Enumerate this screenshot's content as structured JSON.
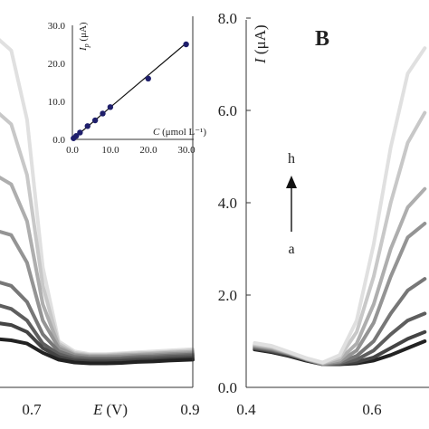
{
  "chart_data": [
    {
      "type": "line",
      "panel": "A (partial)",
      "xlabel_var": "E",
      "xlabel_unit": "(V)",
      "ylabel": "",
      "x_ticks": [
        "0.7",
        "0.9"
      ],
      "xlim": [
        0.65,
        0.9
      ],
      "ylim": [
        0,
        8
      ],
      "series": [
        {
          "x": [
            0.65,
            0.67,
            0.69,
            0.71,
            0.73,
            0.75,
            0.77,
            0.79,
            0.81,
            0.83,
            0.85,
            0.87,
            0.9
          ],
          "y": [
            7.6,
            7.3,
            5.8,
            2.6,
            1.0,
            0.78,
            0.72,
            0.72,
            0.74,
            0.76,
            0.78,
            0.8,
            0.83
          ]
        },
        {
          "x": [
            0.65,
            0.67,
            0.69,
            0.71,
            0.73,
            0.75,
            0.77,
            0.79,
            0.81,
            0.83,
            0.85,
            0.87,
            0.9
          ],
          "y": [
            6.0,
            5.7,
            4.6,
            2.2,
            0.95,
            0.75,
            0.7,
            0.7,
            0.72,
            0.74,
            0.75,
            0.77,
            0.8
          ]
        },
        {
          "x": [
            0.65,
            0.67,
            0.69,
            0.71,
            0.73,
            0.75,
            0.77,
            0.79,
            0.81,
            0.83,
            0.85,
            0.87,
            0.9
          ],
          "y": [
            4.6,
            4.4,
            3.6,
            1.8,
            0.9,
            0.72,
            0.68,
            0.68,
            0.7,
            0.71,
            0.73,
            0.75,
            0.77
          ]
        },
        {
          "x": [
            0.65,
            0.67,
            0.69,
            0.71,
            0.73,
            0.75,
            0.77,
            0.79,
            0.81,
            0.83,
            0.85,
            0.87,
            0.9
          ],
          "y": [
            3.4,
            3.3,
            2.7,
            1.45,
            0.85,
            0.7,
            0.66,
            0.66,
            0.67,
            0.69,
            0.7,
            0.72,
            0.74
          ]
        },
        {
          "x": [
            0.65,
            0.67,
            0.69,
            0.71,
            0.73,
            0.75,
            0.77,
            0.79,
            0.81,
            0.83,
            0.85,
            0.87,
            0.9
          ],
          "y": [
            2.3,
            2.2,
            1.85,
            1.15,
            0.78,
            0.66,
            0.63,
            0.63,
            0.64,
            0.66,
            0.67,
            0.69,
            0.71
          ]
        },
        {
          "x": [
            0.65,
            0.67,
            0.69,
            0.71,
            0.73,
            0.75,
            0.77,
            0.79,
            0.81,
            0.83,
            0.85,
            0.87,
            0.9
          ],
          "y": [
            1.8,
            1.7,
            1.45,
            0.95,
            0.72,
            0.62,
            0.6,
            0.6,
            0.61,
            0.63,
            0.64,
            0.66,
            0.68
          ]
        },
        {
          "x": [
            0.65,
            0.67,
            0.69,
            0.71,
            0.73,
            0.75,
            0.77,
            0.79,
            0.81,
            0.83,
            0.85,
            0.87,
            0.9
          ],
          "y": [
            1.4,
            1.35,
            1.2,
            0.85,
            0.66,
            0.58,
            0.56,
            0.56,
            0.57,
            0.59,
            0.6,
            0.62,
            0.64
          ]
        },
        {
          "x": [
            0.65,
            0.67,
            0.69,
            0.71,
            0.73,
            0.75,
            0.77,
            0.79,
            0.81,
            0.83,
            0.85,
            0.87,
            0.9
          ],
          "y": [
            1.05,
            1.02,
            0.95,
            0.75,
            0.6,
            0.54,
            0.52,
            0.52,
            0.53,
            0.55,
            0.56,
            0.58,
            0.6
          ]
        }
      ],
      "colors": [
        "#e0e0e0",
        "#c8c8c8",
        "#aeaeae",
        "#949494",
        "#777777",
        "#5e5e5e",
        "#444444",
        "#222222"
      ]
    },
    {
      "type": "scatter",
      "panel": "A inset",
      "xlabel_var": "C",
      "xlabel_unit": " (μmol L⁻¹)",
      "ylabel_var": "I",
      "ylabel_sub": "p",
      "ylabel_unit": " (μA)",
      "x_ticks": [
        "0.0",
        "10.0",
        "20.0",
        "30.0"
      ],
      "y_ticks": [
        "0.0",
        "10.0",
        "20.0",
        "30.0"
      ],
      "xlim": [
        0,
        32
      ],
      "ylim": [
        0,
        30
      ],
      "points": [
        {
          "x": 0.3,
          "y": 0.3
        },
        {
          "x": 1.0,
          "y": 0.9
        },
        {
          "x": 2.0,
          "y": 1.8
        },
        {
          "x": 4.0,
          "y": 3.5
        },
        {
          "x": 6.0,
          "y": 5.0
        },
        {
          "x": 8.0,
          "y": 6.8
        },
        {
          "x": 10.0,
          "y": 8.5
        },
        {
          "x": 20.0,
          "y": 16.0
        },
        {
          "x": 30.0,
          "y": 25.0
        }
      ],
      "fit_line": [
        {
          "x": 0.0,
          "y": 0.0
        },
        {
          "x": 30.0,
          "y": 25.3
        }
      ]
    },
    {
      "type": "line",
      "panel": "B",
      "panel_label": "B",
      "ylabel_var": "I",
      "ylabel_unit": " (μA)",
      "x_ticks": [
        "0.4",
        "0.6"
      ],
      "y_ticks": [
        "0.0",
        "2.0",
        "4.0",
        "6.0",
        "8.0"
      ],
      "xlim": [
        0.4,
        0.83
      ],
      "ylim": [
        0,
        8
      ],
      "annotation": {
        "top": "h",
        "bottom": "a"
      },
      "series": [
        {
          "x": [
            0.42,
            0.46,
            0.5,
            0.54,
            0.58,
            0.62,
            0.66,
            0.7,
            0.74,
            0.78,
            0.82
          ],
          "y": [
            0.82,
            0.76,
            0.68,
            0.58,
            0.5,
            0.5,
            0.52,
            0.58,
            0.7,
            0.85,
            1.0
          ]
        },
        {
          "x": [
            0.42,
            0.46,
            0.5,
            0.54,
            0.58,
            0.62,
            0.66,
            0.7,
            0.74,
            0.78,
            0.82
          ],
          "y": [
            0.84,
            0.78,
            0.7,
            0.6,
            0.5,
            0.51,
            0.55,
            0.65,
            0.85,
            1.05,
            1.2
          ]
        },
        {
          "x": [
            0.42,
            0.46,
            0.5,
            0.54,
            0.58,
            0.62,
            0.66,
            0.7,
            0.74,
            0.78,
            0.82
          ],
          "y": [
            0.86,
            0.8,
            0.72,
            0.6,
            0.5,
            0.52,
            0.6,
            0.8,
            1.15,
            1.45,
            1.6
          ]
        },
        {
          "x": [
            0.42,
            0.46,
            0.5,
            0.54,
            0.58,
            0.62,
            0.66,
            0.7,
            0.74,
            0.78,
            0.82
          ],
          "y": [
            0.88,
            0.82,
            0.73,
            0.61,
            0.5,
            0.54,
            0.68,
            1.0,
            1.6,
            2.1,
            2.35
          ]
        },
        {
          "x": [
            0.42,
            0.46,
            0.5,
            0.54,
            0.58,
            0.62,
            0.66,
            0.7,
            0.74,
            0.78,
            0.82
          ],
          "y": [
            0.9,
            0.84,
            0.74,
            0.62,
            0.51,
            0.56,
            0.8,
            1.4,
            2.4,
            3.25,
            3.55
          ]
        },
        {
          "x": [
            0.42,
            0.46,
            0.5,
            0.54,
            0.58,
            0.62,
            0.66,
            0.7,
            0.74,
            0.78,
            0.82
          ],
          "y": [
            0.92,
            0.86,
            0.75,
            0.62,
            0.52,
            0.6,
            0.95,
            1.8,
            3.0,
            3.9,
            4.3
          ]
        },
        {
          "x": [
            0.42,
            0.46,
            0.5,
            0.54,
            0.58,
            0.62,
            0.66,
            0.7,
            0.74,
            0.78,
            0.82
          ],
          "y": [
            0.94,
            0.88,
            0.76,
            0.63,
            0.53,
            0.65,
            1.2,
            2.4,
            4.0,
            5.3,
            5.95
          ]
        },
        {
          "x": [
            0.42,
            0.46,
            0.5,
            0.54,
            0.58,
            0.62,
            0.66,
            0.7,
            0.74,
            0.78,
            0.82
          ],
          "y": [
            0.96,
            0.9,
            0.77,
            0.64,
            0.54,
            0.7,
            1.45,
            3.1,
            5.2,
            6.8,
            7.35
          ]
        }
      ],
      "colors": [
        "#222222",
        "#444444",
        "#5e5e5e",
        "#777777",
        "#949494",
        "#aeaeae",
        "#c8c8c8",
        "#e0e0e0"
      ]
    }
  ]
}
